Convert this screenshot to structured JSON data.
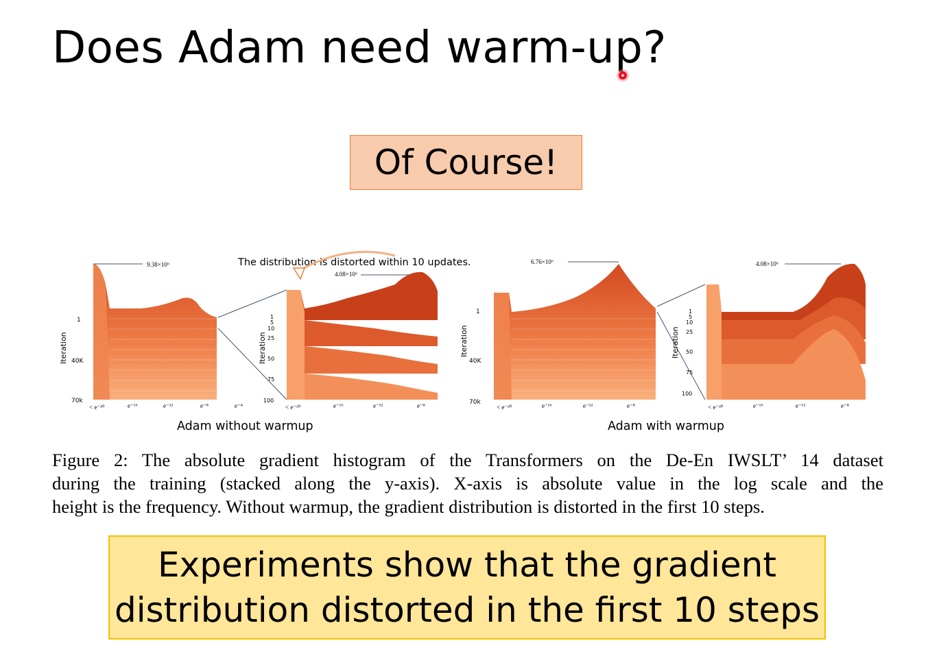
{
  "slide": {
    "title": "Does Adam need warm-up?",
    "callout": "Of Course!",
    "summary_lines": [
      "Experiments show that the gradient",
      "distribution distorted in the first 10 steps"
    ]
  },
  "figure": {
    "annotation": "The distribution is distorted within 10 updates.",
    "panels": [
      {
        "label": "Adam without warmup",
        "main": {
          "peak_label": "9.38×10⁶",
          "y_title": "Iteration",
          "y_ticks": [
            "1",
            "40K",
            "70k"
          ],
          "x_ticks": [
            "< e⁻²⁰",
            "e⁻¹⁶",
            "e⁻¹²",
            "e⁻⁸",
            "e⁻⁴"
          ]
        },
        "zoom": {
          "peak_label": "4.08×10⁶",
          "y_title": "Iteration",
          "y_ticks": [
            "1",
            "5",
            "10",
            "25",
            "50",
            "75",
            "100"
          ],
          "x_ticks": [
            "< e⁻²⁰",
            "e⁻¹⁶",
            "e⁻¹²",
            "e⁻⁸"
          ]
        }
      },
      {
        "label": "Adam with warmup",
        "main": {
          "peak_label": "6.76×10⁶",
          "y_title": "Iteration",
          "y_ticks": [
            "1",
            "40K",
            "70k"
          ],
          "x_ticks": [
            "< e⁻²⁰",
            "e⁻¹⁶",
            "e⁻¹²",
            "e⁻⁸"
          ]
        },
        "zoom": {
          "peak_label": "4.08×10⁶",
          "y_title": "Iteration",
          "y_ticks": [
            "1",
            "5",
            "10",
            "25",
            "50",
            "75",
            "100"
          ],
          "x_ticks": [
            "< e⁻²⁰",
            "e⁻¹⁶",
            "e⁻¹²",
            "e⁻⁸"
          ]
        }
      }
    ],
    "colors": {
      "dark": "#c8401a",
      "mid": "#e8683a",
      "light": "#f7a06a"
    }
  },
  "caption_lines": [
    "Figure 2:  The absolute gradient histogram of the Transformers on the De-En IWSLT’ 14 dataset",
    "during the training (stacked along the y-axis).  X-axis is absolute value in the log scale and the",
    "height is the frequency. Without warmup, the gradient distribution is distorted in the first 10 steps."
  ]
}
